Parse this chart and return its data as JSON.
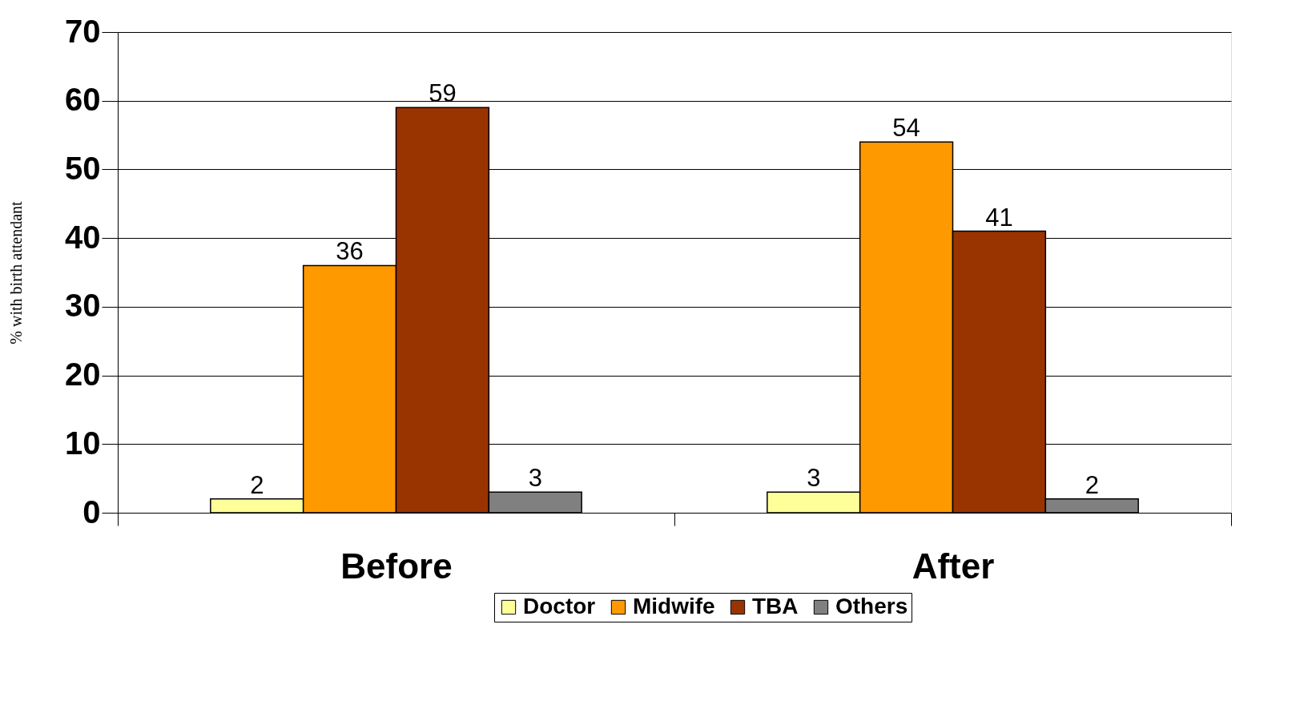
{
  "chart_data": {
    "type": "bar",
    "ylabel": "% with birth attendant",
    "categories": [
      "Before",
      "After"
    ],
    "series": [
      {
        "name": "Doctor",
        "color": "#ffff99",
        "values": [
          2,
          3
        ]
      },
      {
        "name": "Midwife",
        "color": "#ff9900",
        "values": [
          36,
          54
        ]
      },
      {
        "name": "TBA",
        "color": "#993300",
        "values": [
          59,
          41
        ]
      },
      {
        "name": "Others",
        "color": "#808080",
        "values": [
          3,
          2
        ]
      }
    ],
    "ylim": [
      0,
      70
    ],
    "yticks": [
      0,
      10,
      20,
      30,
      40,
      50,
      60,
      70
    ],
    "grid": "y",
    "legend": "bottom",
    "data_labels": true
  }
}
